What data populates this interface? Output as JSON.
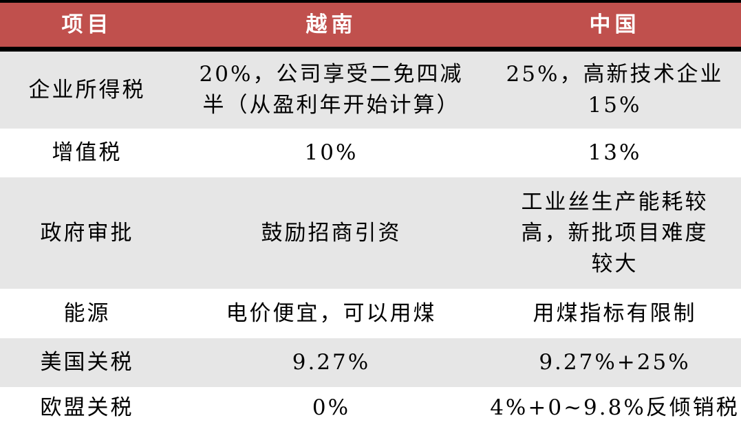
{
  "header": [
    "项目",
    "越南",
    "中国"
  ],
  "rows": [
    [
      "企业所得税",
      "20%，公司享受二免四减\n半（从盈利年开始计算）",
      "25%，高新技术企业\n15%"
    ],
    [
      "增值税",
      "10%",
      "13%"
    ],
    [
      "政府审批",
      "鼓励招商引资",
      "工业丝生产能耗较\n高，新批项目难度\n较大"
    ],
    [
      "能源",
      "电价便宜，可以用煤",
      "用煤指标有限制"
    ],
    [
      "美国关税",
      "9.27%",
      "9.27%+25%"
    ],
    [
      "欧盟关税",
      "0%",
      "4%+0~9.8%反倾销税"
    ]
  ],
  "colors": {
    "header_bg": "#c0504d",
    "stripe": "#e6e6e6",
    "rule": "#000000"
  }
}
